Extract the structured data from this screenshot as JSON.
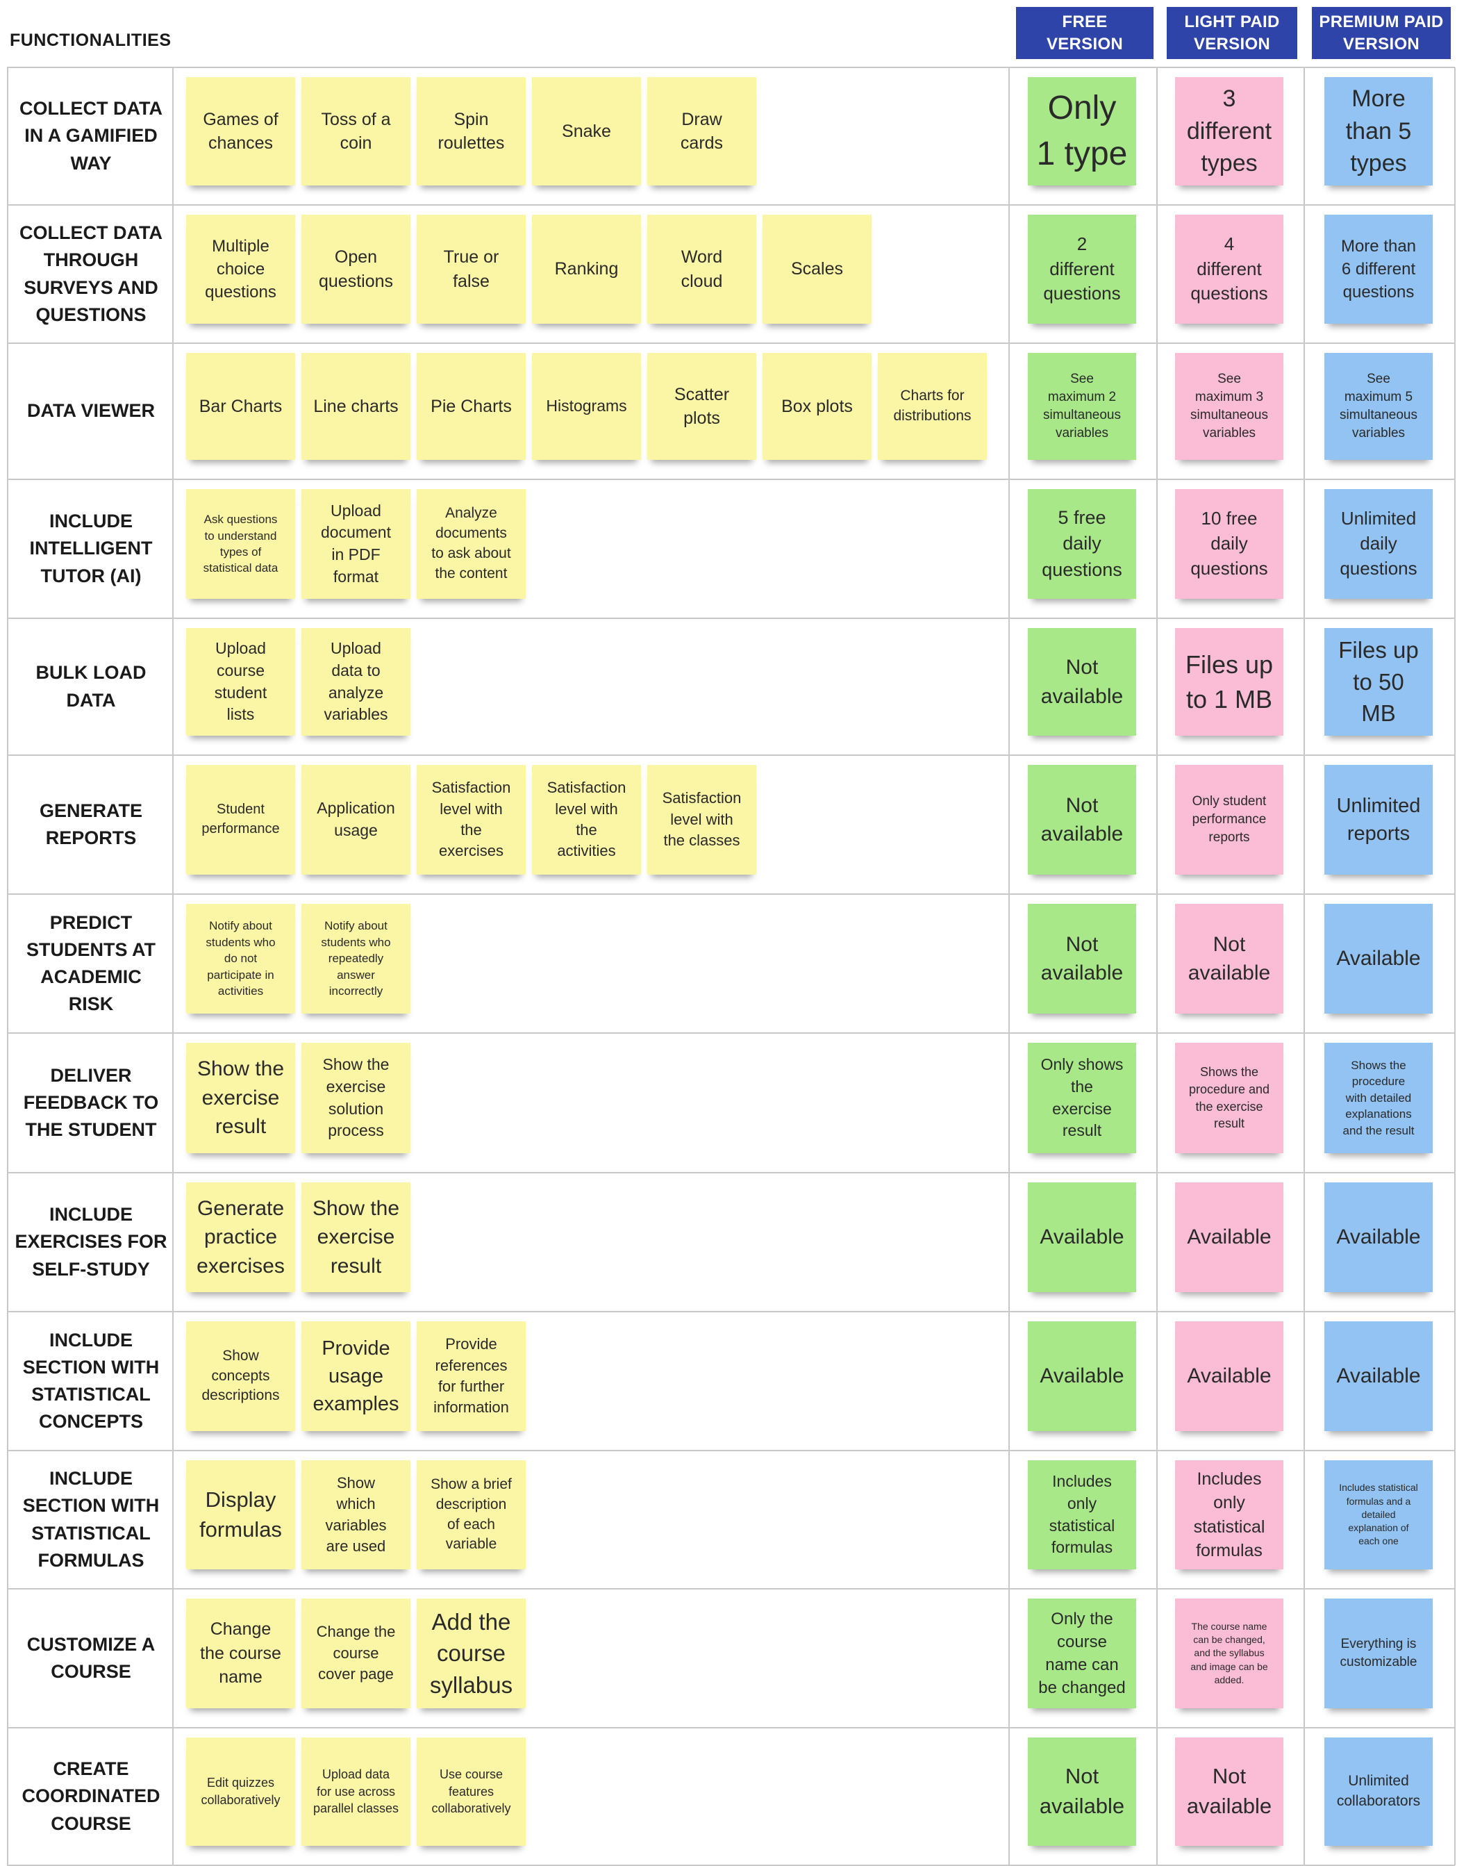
{
  "header": {
    "title": "FUNCTIONALITIES",
    "versions": [
      "FREE\nVERSION",
      "LIGHT PAID\nVERSION",
      "PREMIUM PAID\nVERSION"
    ]
  },
  "colors": {
    "header_bg": "#2f44a8",
    "feature_note": "#fbf5a6",
    "free_note": "#a8e889",
    "light_note": "#fbbdd6",
    "premium_note": "#92c3f2"
  },
  "rows": [
    {
      "label": "COLLECT DATA\nIN A GAMIFIED\nWAY",
      "features": [
        "Games of\nchances",
        "Toss of a\ncoin",
        "Spin\nroulettes",
        "Snake",
        "Draw\ncards"
      ],
      "free": "Only\n1 type",
      "light": "3\ndifferent\ntypes",
      "premium": "More\nthan 5\ntypes"
    },
    {
      "label": "COLLECT DATA\nTHROUGH\nSURVEYS AND\nQUESTIONS",
      "features": [
        "Multiple\nchoice\nquestions",
        "Open\nquestions",
        "True or\nfalse",
        "Ranking",
        "Word\ncloud",
        "Scales"
      ],
      "free": "2\ndifferent\nquestions",
      "light": "4\ndifferent\nquestions",
      "premium": "More than\n6 different\nquestions"
    },
    {
      "label": "DATA VIEWER",
      "features": [
        "Bar Charts",
        "Line charts",
        "Pie Charts",
        "Histograms",
        "Scatter\nplots",
        "Box plots",
        "Charts for\ndistributions"
      ],
      "free": "See\nmaximum 2\nsimultaneous\nvariables",
      "light": "See\nmaximum 3\nsimultaneous\nvariables",
      "premium": "See\nmaximum 5\nsimultaneous\nvariables"
    },
    {
      "label": "INCLUDE\nINTELLIGENT\nTUTOR  (AI)",
      "features": [
        "Ask questions\nto understand\ntypes of\nstatistical data",
        "Upload\ndocument\nin PDF\nformat",
        "Analyze\ndocuments\nto ask about\nthe content"
      ],
      "free": "5 free\ndaily\nquestions",
      "light": "10 free\ndaily\nquestions",
      "premium": "Unlimited\ndaily\nquestions"
    },
    {
      "label": "BULK LOAD\nDATA",
      "features": [
        "Upload\ncourse\nstudent\nlists",
        "Upload\ndata to\nanalyze\nvariables"
      ],
      "free": "Not\navailable",
      "light": "Files up\nto 1 MB",
      "premium": "Files up\nto 50\nMB"
    },
    {
      "label": "GENERATE\nREPORTS",
      "features": [
        "Student\nperformance",
        "Application\nusage",
        "Satisfaction\nlevel with\nthe\nexercises",
        "Satisfaction\nlevel with\nthe\nactivities",
        "Satisfaction\nlevel with\nthe classes"
      ],
      "free": "Not\navailable",
      "light": "Only student\nperformance\nreports",
      "premium": "Unlimited\nreports"
    },
    {
      "label": "PREDICT\nSTUDENTS AT\nACADEMIC\nRISK",
      "features": [
        "Notify about\nstudents who\ndo not\nparticipate in\nactivities",
        "Notify about\nstudents who\nrepeatedly\nanswer\nincorrectly"
      ],
      "free": "Not\navailable",
      "light": "Not\navailable",
      "premium": "Available"
    },
    {
      "label": "DELIVER\nFEEDBACK TO\nTHE STUDENT",
      "features": [
        "Show the\nexercise\nresult",
        "Show the\nexercise\nsolution\nprocess"
      ],
      "free": "Only shows\nthe\nexercise\nresult",
      "light": "Shows the\nprocedure and\nthe exercise\nresult",
      "premium": "Shows the\nprocedure\nwith detailed\nexplanations\nand the result"
    },
    {
      "label": "INCLUDE\nEXERCISES FOR\nSELF-STUDY",
      "features": [
        "Generate\npractice\nexercises",
        "Show the\nexercise\nresult"
      ],
      "free": "Available",
      "light": "Available",
      "premium": "Available"
    },
    {
      "label": "INCLUDE\nSECTION WITH\nSTATISTICAL\nCONCEPTS",
      "features": [
        "Show\nconcepts\ndescriptions",
        "Provide\nusage\nexamples",
        "Provide\nreferences\nfor further\ninformation"
      ],
      "free": "Available",
      "light": "Available",
      "premium": "Available"
    },
    {
      "label": "INCLUDE\nSECTION WITH\nSTATISTICAL\nFORMULAS",
      "features": [
        "Display\nformulas",
        "Show\nwhich\nvariables\nare used",
        "Show a brief\ndescription\nof each\nvariable"
      ],
      "free": "Includes\nonly\nstatistical\nformulas",
      "light": "Includes\nonly\nstatistical\nformulas",
      "premium": "Includes statistical\nformulas and a\ndetailed\nexplanation of\neach one"
    },
    {
      "label": "CUSTOMIZE A\nCOURSE",
      "features": [
        "Change\nthe course\nname",
        "Change the\ncourse\ncover page",
        "Add the\ncourse\nsyllabus"
      ],
      "free": "Only the\ncourse\nname can\nbe changed",
      "light": "The course name\ncan be changed,\nand the syllabus\nand image can be\nadded.",
      "premium": "Everything is\ncustomizable"
    },
    {
      "label": "CREATE\nCOORDINATED\nCOURSE",
      "features": [
        "Edit quizzes\ncollaboratively",
        "Upload data\nfor use across\nparallel classes",
        "Use course\nfeatures\ncollaboratively"
      ],
      "free": "Not\navailable",
      "light": "Not\navailable",
      "premium": "Unlimited\ncollaborators"
    }
  ]
}
